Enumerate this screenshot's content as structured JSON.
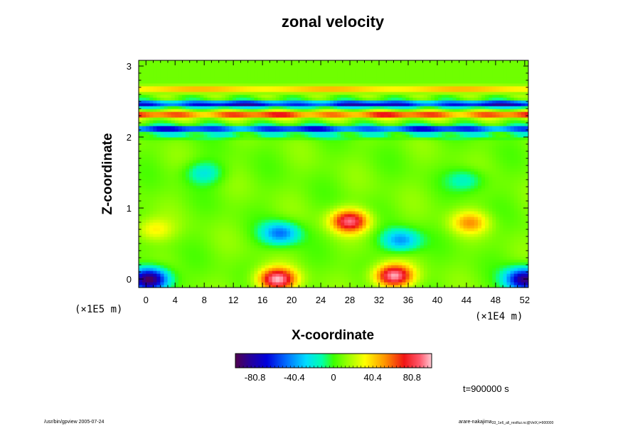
{
  "chart_data": {
    "type": "heatmap",
    "title": "zonal velocity",
    "xlabel": "X-coordinate",
    "ylabel": "Z-coordinate",
    "x_unit": "(×1E4 m)",
    "y_unit": "(×1E5 m)",
    "xlim": [
      -1,
      52.5
    ],
    "ylim": [
      -0.12,
      3.08
    ],
    "x_ticks": [
      "0",
      "4",
      "8",
      "12",
      "16",
      "20",
      "24",
      "28",
      "32",
      "36",
      "40",
      "44",
      "48",
      "52"
    ],
    "y_ticks": [
      "0",
      "1",
      "2",
      "3"
    ],
    "colorbar": {
      "ticks": [
        "-80.8",
        "-40.4",
        "0",
        "40.4",
        "80.8"
      ],
      "range": [
        -101,
        101
      ]
    },
    "bands": [
      {
        "z": 2.68,
        "value": 45
      },
      {
        "z": 2.47,
        "value": -90
      },
      {
        "z": 2.32,
        "value": 70
      },
      {
        "z": 2.12,
        "value": -85
      },
      {
        "z": 2.02,
        "value": -20
      }
    ],
    "blobs": [
      {
        "x": 0.5,
        "z": 0.0,
        "value": -110
      },
      {
        "x": 52.0,
        "z": 0.0,
        "value": -100
      },
      {
        "x": 18.0,
        "z": 0.0,
        "value": 90
      },
      {
        "x": 34.0,
        "z": 0.05,
        "value": 90
      },
      {
        "x": 18.5,
        "z": 0.65,
        "value": -55
      },
      {
        "x": 35.0,
        "z": 0.55,
        "value": -50
      },
      {
        "x": 28.0,
        "z": 0.82,
        "value": 80
      },
      {
        "x": 44.5,
        "z": 0.8,
        "value": 40
      },
      {
        "x": 1.0,
        "z": 0.7,
        "value": 28
      },
      {
        "x": 8.0,
        "z": 1.5,
        "value": -30
      },
      {
        "x": 44.0,
        "z": 1.4,
        "value": -25
      }
    ],
    "time_label": "t=900000 s"
  },
  "footer": {
    "left": "/usr/bin/gpview 2005-07-24",
    "right_main": "arare-nakajima",
    "right_sub": "33_1e6_all_restfuz.nc@VelX,t=900000"
  }
}
